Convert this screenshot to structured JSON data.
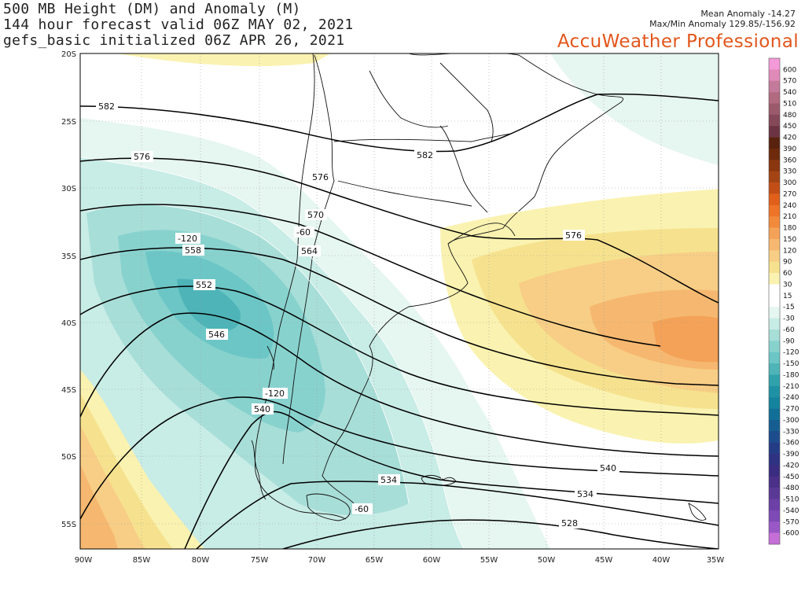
{
  "header": {
    "title_line1": "500 MB Height (DM) and Anomaly (M)",
    "title_line2": "144 hour forecast valid 06Z MAY 02, 2021",
    "title_line3": "gefs_basic initialized 06Z APR 26, 2021",
    "mean_anomaly": "Mean Anomaly -14.27",
    "maxmin_anomaly": "Max/Min Anomaly 129.85/-156.92",
    "brand": "AccuWeather Professional"
  },
  "axes": {
    "lat_labels": [
      "20S",
      "25S",
      "30S",
      "35S",
      "40S",
      "45S",
      "50S",
      "55S"
    ],
    "lon_labels": [
      "90W",
      "85W",
      "80W",
      "75W",
      "70W",
      "65W",
      "60W",
      "55W",
      "50W",
      "45W",
      "40W",
      "35W"
    ]
  },
  "contour_labels": {
    "height": [
      "582",
      "582",
      "576",
      "576",
      "576",
      "570",
      "564",
      "558",
      "552",
      "546",
      "540",
      "540",
      "534",
      "534",
      "528"
    ],
    "anomaly": [
      "-120",
      "-60",
      "-120",
      "-60"
    ]
  },
  "legend": {
    "levels": [
      "600",
      "570",
      "540",
      "510",
      "480",
      "450",
      "420",
      "390",
      "360",
      "330",
      "300",
      "270",
      "240",
      "210",
      "180",
      "150",
      "120",
      "90",
      "60",
      "30",
      "15",
      "-15",
      "-30",
      "-60",
      "-90",
      "-120",
      "-150",
      "-180",
      "-210",
      "-240",
      "-270",
      "-300",
      "-330",
      "-360",
      "-390",
      "-420",
      "-450",
      "-480",
      "-510",
      "-540",
      "-570",
      "-600"
    ],
    "colors": [
      "#f49ad8",
      "#e08ab8",
      "#c47a9a",
      "#b26a80",
      "#9b5a6c",
      "#844858",
      "#6c3442",
      "#58220e",
      "#6e2a0c",
      "#8a360e",
      "#a44414",
      "#c24e16",
      "#e0601a",
      "#ee7428",
      "#f28a3c",
      "#f4a258",
      "#f6b870",
      "#f8ce86",
      "#f6e28e",
      "#faf2b0",
      "#ffffff",
      "#ffffff",
      "#e6f6f0",
      "#c8ece6",
      "#a8ded8",
      "#88d2ce",
      "#6cc6c6",
      "#4eb4b8",
      "#30a2ac",
      "#1e92a4",
      "#14839e",
      "#127098",
      "#165e92",
      "#1c4c8c",
      "#243c86",
      "#2e3282",
      "#3a2c80",
      "#4a3088",
      "#5a3896",
      "#6c40a6",
      "#7e4ab6",
      "#9a58c6",
      "#c66ed8"
    ]
  }
}
